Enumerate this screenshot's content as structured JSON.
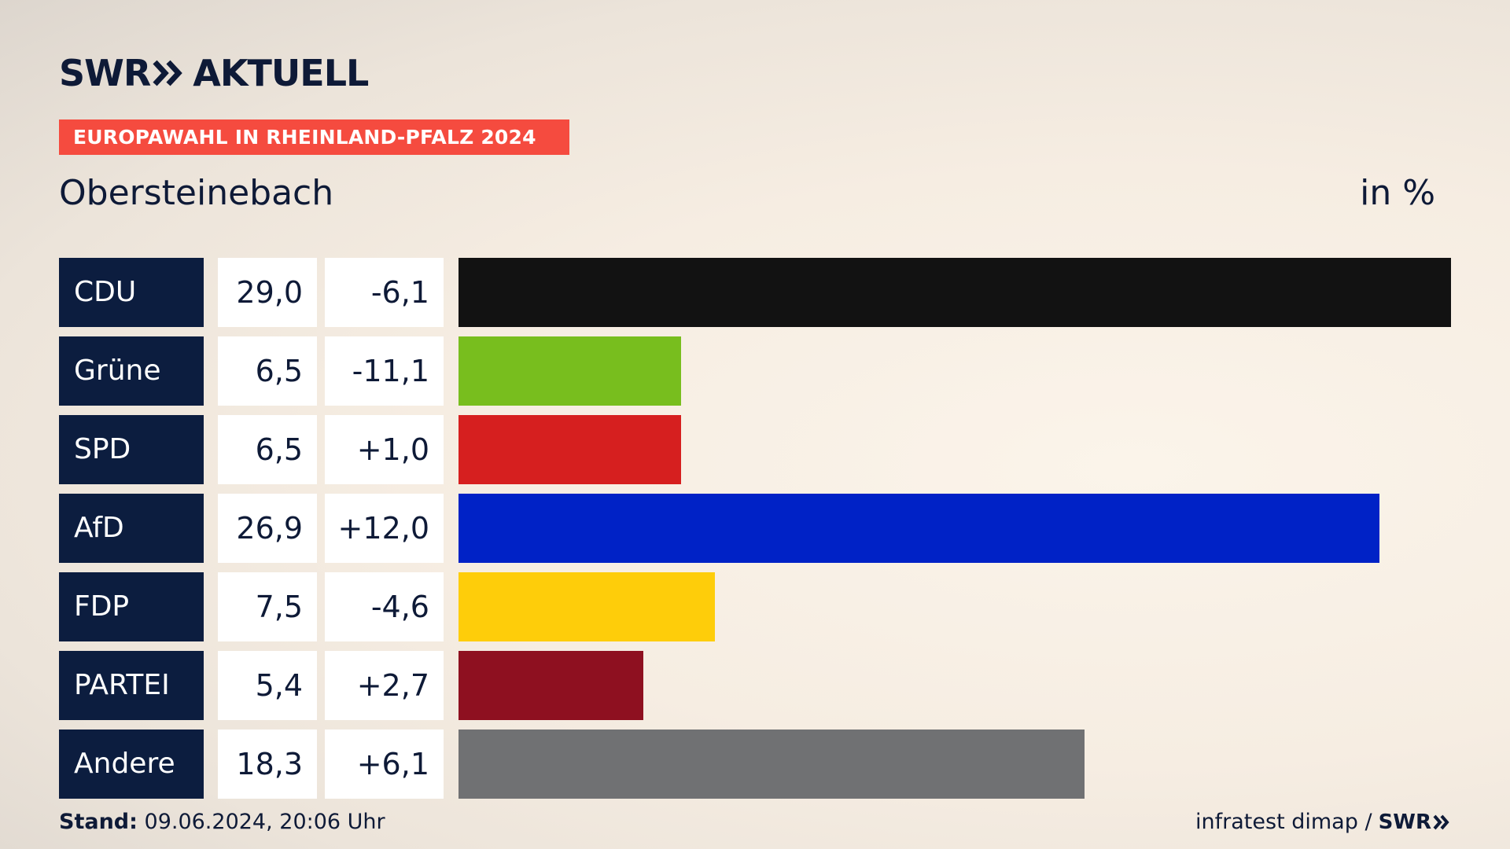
{
  "logo": {
    "left": "SWR",
    "right": "AKTUELL"
  },
  "banner": "EUROPAWAHL IN RHEINLAND-PFALZ 2024",
  "location": "Obersteinebach",
  "unit": "in %",
  "footer": {
    "stand_label": "Stand:",
    "stand_value": "09.06.2024, 20:06 Uhr",
    "source": "infratest dimap /",
    "source_logo": "SWR"
  },
  "chart_data": {
    "type": "bar",
    "orientation": "horizontal",
    "categories": [
      "CDU",
      "Grüne",
      "SPD",
      "AfD",
      "FDP",
      "PARTEI",
      "Andere"
    ],
    "values": [
      29.0,
      6.5,
      6.5,
      26.9,
      7.5,
      5.4,
      18.3
    ],
    "value_labels": [
      "29,0",
      "6,5",
      "6,5",
      "26,9",
      "7,5",
      "5,4",
      "18,3"
    ],
    "differences": [
      "-6,1",
      "-11,1",
      "+1,0",
      "+12,0",
      "-4,6",
      "+2,7",
      "+6,1"
    ],
    "colors": [
      "#121212",
      "#78be1e",
      "#d61f1f",
      "#0022c6",
      "#fecd0a",
      "#8e1020",
      "#707173"
    ],
    "xlim": [
      0,
      29.0
    ]
  }
}
